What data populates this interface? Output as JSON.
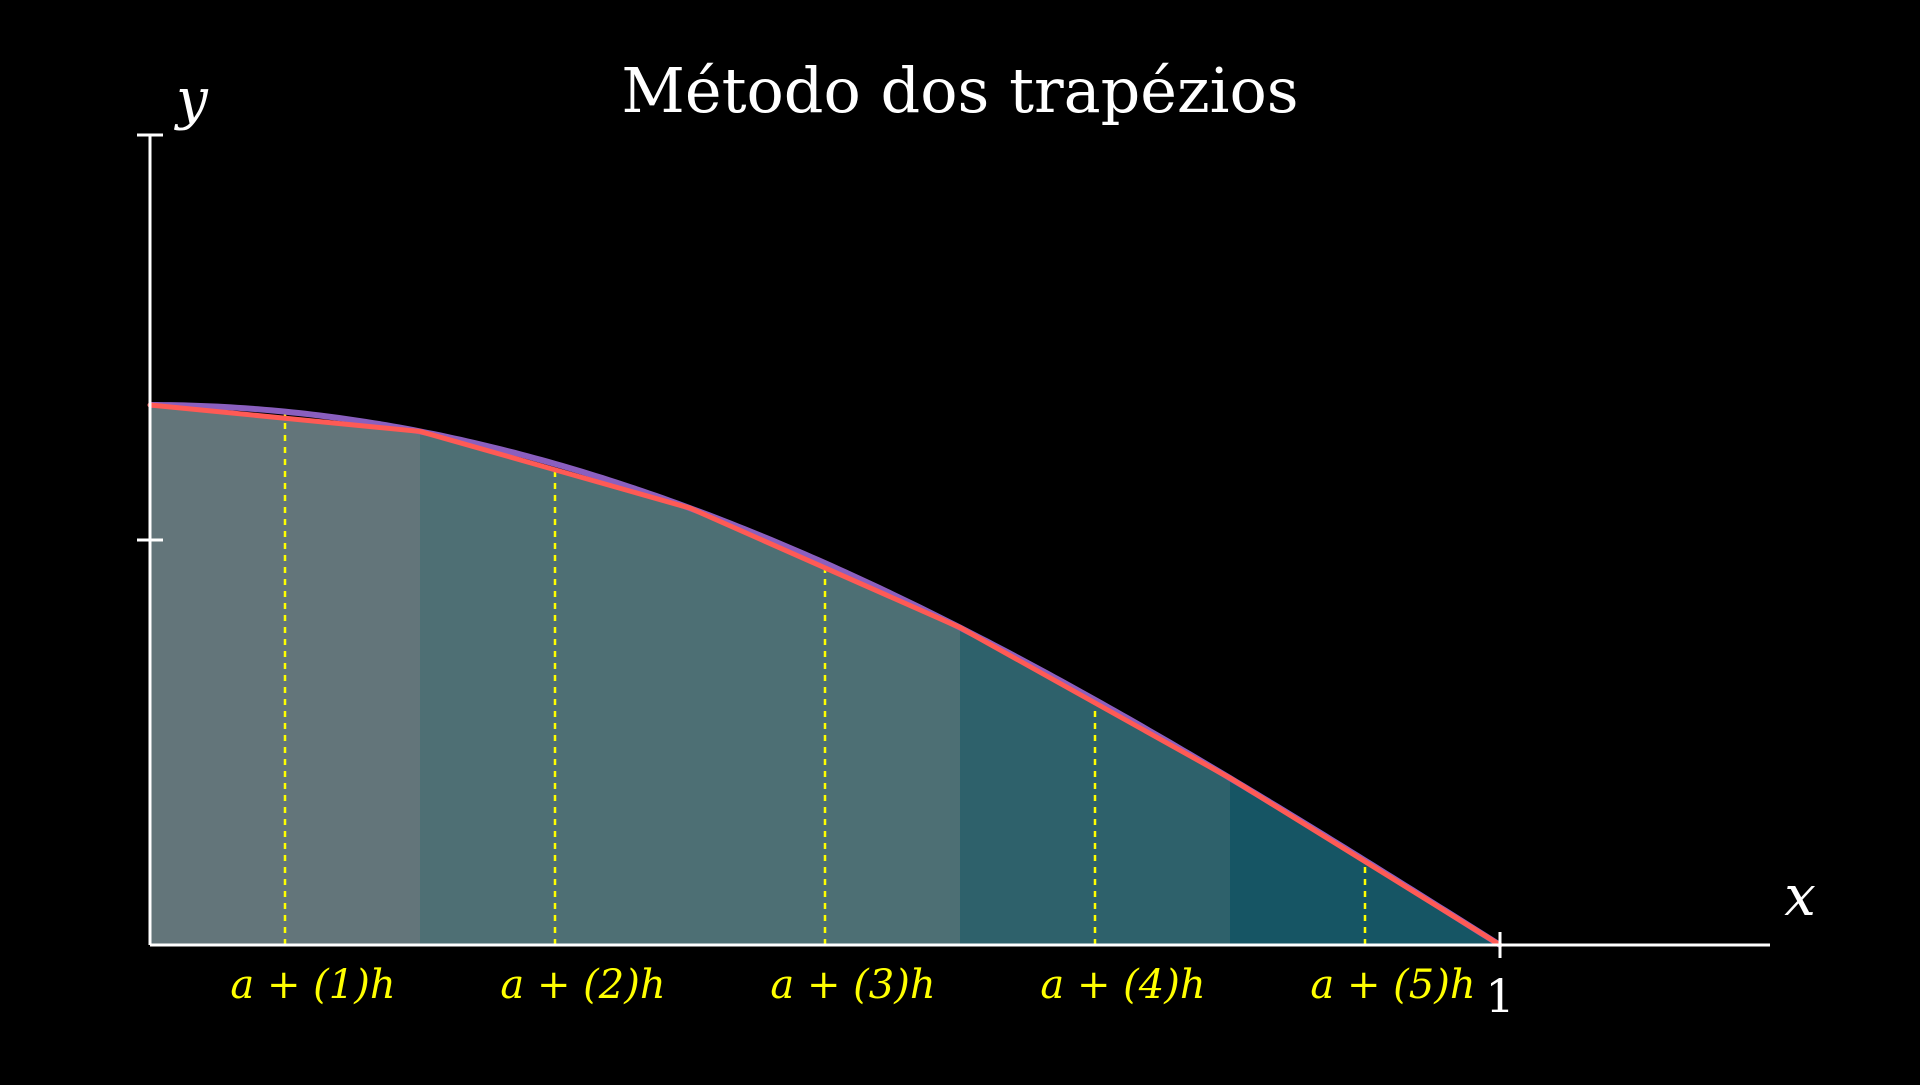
{
  "title": "Método dos trapézios",
  "axes": {
    "x_label": "x",
    "y_label": "y",
    "x_tick_label": "1",
    "x_range": [
      0,
      1
    ],
    "y_range": [
      0,
      1.5
    ]
  },
  "colors": {
    "curve": "#8a5fbf",
    "trapezoid_edge": "#ff5a55",
    "guide": "#ffff00",
    "axis": "#ffffff",
    "fills": [
      "#63757a",
      "#4e6f74",
      "#4d6f74",
      "#2e616b",
      "#165564",
      "#143444"
    ]
  },
  "chart_data": {
    "type": "area",
    "function": "cos(pi*x/2)",
    "x_range": [
      0,
      1
    ],
    "y_ticks": [
      0.75,
      1.5
    ],
    "trapezoid_nodes_x": [
      0,
      0.2,
      0.4,
      0.6,
      0.8,
      1.0
    ],
    "midpoints_x": [
      0.1,
      0.3,
      0.5,
      0.7,
      0.9
    ],
    "node_labels": [
      "a + (1)h",
      "a + (2)h",
      "a + (3)h",
      "a + (4)h",
      "a + (5)h"
    ]
  }
}
